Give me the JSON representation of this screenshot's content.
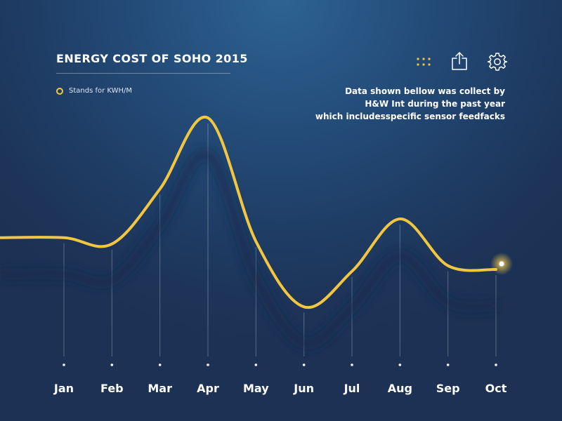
{
  "header": {
    "title": "ENERGY COST OF SOHO 2015",
    "legend_label": "Stands for KWH/M",
    "note_lines": [
      "Data shown bellow was collect by",
      "H&W Int during the past year",
      "which includesspecific sensor feedfacks"
    ]
  },
  "toolbar": {
    "icons": [
      "dots-grid-icon",
      "share-icon",
      "gear-icon"
    ]
  },
  "colors": {
    "accent": "#f2c641",
    "background_top": "#2e6391",
    "background_bottom": "#1c3153"
  },
  "chart_data": {
    "type": "line",
    "categories": [
      "Jan",
      "Feb",
      "Mar",
      "Apr",
      "May",
      "Jun",
      "Jul",
      "Aug",
      "Sep",
      "Oct"
    ],
    "values": [
      340,
      323,
      470,
      660,
      330,
      155,
      250,
      390,
      265,
      255
    ],
    "ylim": [
      0,
      750
    ],
    "title": "ENERGY COST OF SOHO 2015",
    "legend": [
      {
        "label": "Stands for KWH/M",
        "marker": "ring",
        "color": "#f2c641"
      }
    ],
    "grid": false,
    "series_color": "#f2c641"
  }
}
